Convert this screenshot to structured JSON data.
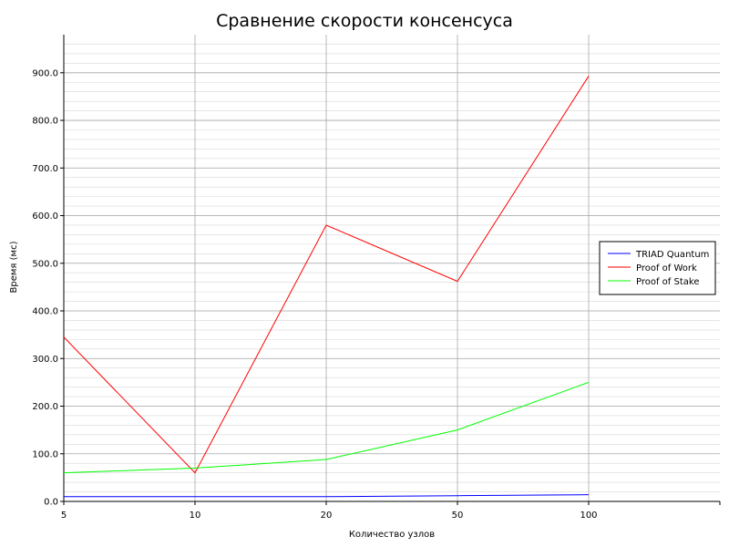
{
  "chart_data": {
    "type": "line",
    "title": "Сравнение скорости консенсуса",
    "xlabel": "Количество узлов",
    "ylabel": "Время (мс)",
    "categories": [
      "5",
      "10",
      "20",
      "50",
      "100"
    ],
    "ylim": [
      0,
      980
    ],
    "yticks": [
      0,
      100,
      200,
      300,
      400,
      500,
      600,
      700,
      800,
      900
    ],
    "ytick_labels": [
      "0.0",
      "100.0",
      "200.0",
      "300.0",
      "400.0",
      "500.0",
      "600.0",
      "700.0",
      "800.0",
      "900.0"
    ],
    "grid": true,
    "minor_grid": true,
    "legend_position": "right",
    "series": [
      {
        "name": "TRIAD Quantum",
        "color": "#0000ff",
        "values": [
          10,
          10,
          10,
          12,
          14
        ]
      },
      {
        "name": "Proof of Work",
        "color": "#ff0000",
        "values": [
          345,
          60,
          580,
          462,
          893
        ]
      },
      {
        "name": "Proof of Stake",
        "color": "#00ff00",
        "values": [
          60,
          70,
          88,
          150,
          250
        ]
      }
    ]
  }
}
